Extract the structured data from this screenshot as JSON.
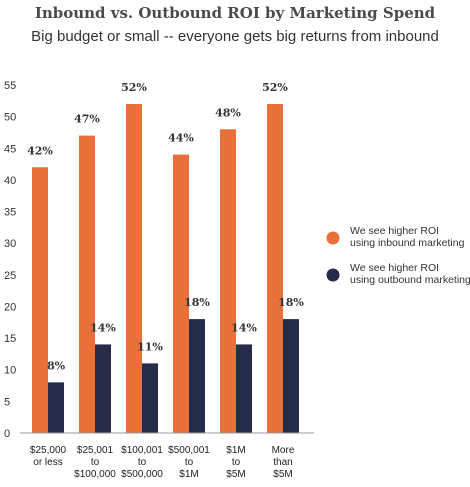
{
  "chart_data": {
    "type": "bar",
    "title": "Inbound vs. Outbound ROI by Marketing Spend",
    "subtitle": "Big budget or small -- everyone gets big returns from inbound",
    "categories": [
      [
        "$25,000",
        "or less"
      ],
      [
        "$25,001",
        "to",
        "$100,000"
      ],
      [
        "$100,001",
        "to",
        "$500,000"
      ],
      [
        "$500,001",
        "to",
        "$1M"
      ],
      [
        "$1M",
        "to",
        "$5M"
      ],
      [
        "More",
        "than",
        "$5M"
      ]
    ],
    "series": [
      {
        "name": "We see higher ROI using inbound marketing",
        "legend_lines": [
          "We see higher ROI",
          "using inbound marketing"
        ],
        "color": "#e8703a",
        "values": [
          42,
          47,
          52,
          44,
          48,
          52
        ],
        "labels": [
          "42%",
          "47%",
          "52%",
          "44%",
          "48%",
          "52%"
        ]
      },
      {
        "name": "We see higher ROI using outbound marketing",
        "legend_lines": [
          "We see higher ROI",
          "using outbound marketing"
        ],
        "color": "#262b4a",
        "values": [
          8,
          14,
          11,
          18,
          14,
          18
        ],
        "labels": [
          "8%",
          "14%",
          "11%",
          "18%",
          "14%",
          "18%"
        ]
      }
    ],
    "yticks": [
      0,
      5,
      10,
      15,
      20,
      25,
      30,
      35,
      40,
      45,
      50,
      55
    ],
    "ylim": [
      0,
      55
    ],
    "grid": false,
    "legend_position": "right"
  }
}
